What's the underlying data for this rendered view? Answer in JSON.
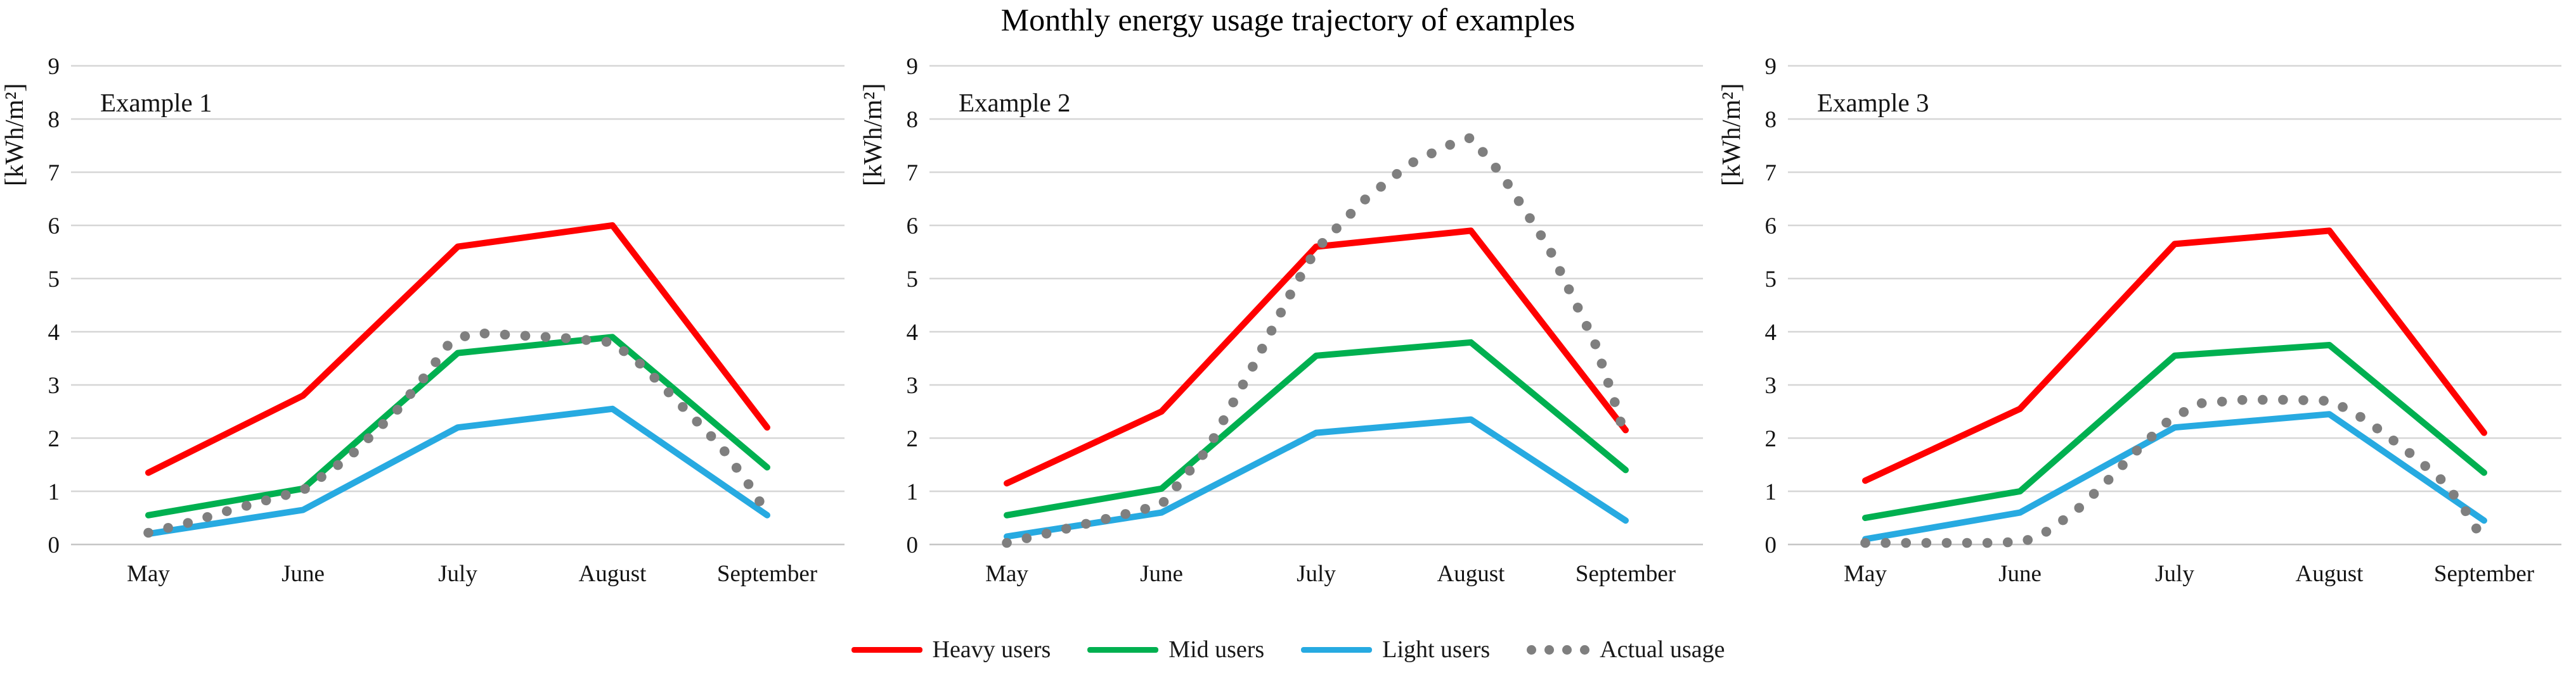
{
  "title": "Monthly energy usage trajectory of examples",
  "ylabel": "[kWh/m²]",
  "theme": {
    "heavy_color": "#FF0000",
    "mid_color": "#00B050",
    "light_color": "#27AAE1",
    "actual_color": "#7F7F7F",
    "gridline_color": "#D6D6D6",
    "zeroline_color": "#C6C6C6",
    "text_color": "#141414"
  },
  "legend": [
    {
      "label": "Heavy users",
      "color": "#FF0000",
      "style": "line"
    },
    {
      "label": "Mid users",
      "color": "#00B050",
      "style": "line"
    },
    {
      "label": "Light users",
      "color": "#27AAE1",
      "style": "line"
    },
    {
      "label": "Actual usage",
      "color": "#7F7F7F",
      "style": "dots"
    }
  ],
  "axis": {
    "ymin": 0,
    "ymax": 9,
    "yticks": [
      0,
      1,
      2,
      3,
      4,
      5,
      6,
      7,
      8,
      9
    ]
  },
  "chart_data": [
    {
      "type": "line",
      "title": "Example 1",
      "categories": [
        "May",
        "June",
        "July",
        "August",
        "September"
      ],
      "ylabel": "[kWh/m²]",
      "ylim": [
        0,
        9
      ],
      "grid": true,
      "legend_position": "bottom",
      "series": [
        {
          "name": "Heavy users",
          "color": "#FF0000",
          "values": [
            1.35,
            2.8,
            5.6,
            6.0,
            2.2
          ]
        },
        {
          "name": "Mid users",
          "color": "#00B050",
          "values": [
            0.55,
            1.05,
            3.6,
            3.9,
            1.45
          ]
        },
        {
          "name": "Light users",
          "color": "#27AAE1",
          "values": [
            0.2,
            0.65,
            2.2,
            2.55,
            0.55
          ]
        }
      ],
      "actual": {
        "name": "Actual usage",
        "color": "#7F7F7F",
        "points": [
          [
            0,
            0.22
          ],
          [
            0.25,
            0.4
          ],
          [
            0.5,
            0.62
          ],
          [
            0.75,
            0.82
          ],
          [
            1,
            1.02
          ],
          [
            1.3,
            1.65
          ],
          [
            1.6,
            2.5
          ],
          [
            1.8,
            3.2
          ],
          [
            1.95,
            3.8
          ],
          [
            2.1,
            3.98
          ],
          [
            2.4,
            3.93
          ],
          [
            2.7,
            3.88
          ],
          [
            3,
            3.8
          ],
          [
            3.2,
            3.35
          ],
          [
            3.45,
            2.6
          ],
          [
            3.7,
            1.85
          ],
          [
            3.9,
            1.05
          ],
          [
            3.97,
            0.72
          ]
        ]
      }
    },
    {
      "type": "line",
      "title": "Example 2",
      "categories": [
        "May",
        "June",
        "July",
        "August",
        "September"
      ],
      "ylabel": "[kWh/m²]",
      "ylim": [
        0,
        9
      ],
      "grid": true,
      "legend_position": "bottom",
      "series": [
        {
          "name": "Heavy users",
          "color": "#FF0000",
          "values": [
            1.15,
            2.5,
            5.6,
            5.9,
            2.15
          ]
        },
        {
          "name": "Mid users",
          "color": "#00B050",
          "values": [
            0.55,
            1.05,
            3.55,
            3.8,
            1.4
          ]
        },
        {
          "name": "Light users",
          "color": "#27AAE1",
          "values": [
            0.15,
            0.6,
            2.1,
            2.35,
            0.45
          ]
        }
      ],
      "actual": {
        "name": "Actual usage",
        "color": "#7F7F7F",
        "points": [
          [
            0,
            0.03
          ],
          [
            0.25,
            0.2
          ],
          [
            0.5,
            0.38
          ],
          [
            0.75,
            0.56
          ],
          [
            1,
            0.75
          ],
          [
            1.3,
            1.8
          ],
          [
            1.6,
            3.4
          ],
          [
            1.85,
            4.8
          ],
          [
            2,
            5.55
          ],
          [
            2.3,
            6.45
          ],
          [
            2.6,
            7.15
          ],
          [
            2.85,
            7.5
          ],
          [
            3,
            7.65
          ],
          [
            3.2,
            6.95
          ],
          [
            3.5,
            5.6
          ],
          [
            3.8,
            3.8
          ],
          [
            3.95,
            2.5
          ],
          [
            4,
            1.95
          ]
        ]
      }
    },
    {
      "type": "line",
      "title": "Example 3",
      "categories": [
        "May",
        "June",
        "July",
        "August",
        "September"
      ],
      "ylabel": "[kWh/m²]",
      "ylim": [
        0,
        9
      ],
      "grid": true,
      "legend_position": "bottom",
      "series": [
        {
          "name": "Heavy users",
          "color": "#FF0000",
          "values": [
            1.2,
            2.55,
            5.65,
            5.9,
            2.1
          ]
        },
        {
          "name": "Mid users",
          "color": "#00B050",
          "values": [
            0.5,
            1.0,
            3.55,
            3.75,
            1.35
          ]
        },
        {
          "name": "Light users",
          "color": "#27AAE1",
          "values": [
            0.1,
            0.6,
            2.2,
            2.45,
            0.45
          ]
        }
      ],
      "actual": {
        "name": "Actual usage",
        "color": "#7F7F7F",
        "points": [
          [
            0,
            0.03
          ],
          [
            0.2,
            0.03
          ],
          [
            0.4,
            0.03
          ],
          [
            0.6,
            0.03
          ],
          [
            0.8,
            0.03
          ],
          [
            1.02,
            0.05
          ],
          [
            1.15,
            0.2
          ],
          [
            1.35,
            0.6
          ],
          [
            1.55,
            1.15
          ],
          [
            1.75,
            1.75
          ],
          [
            1.95,
            2.3
          ],
          [
            2.15,
            2.65
          ],
          [
            2.45,
            2.72
          ],
          [
            2.75,
            2.72
          ],
          [
            3,
            2.7
          ],
          [
            3.15,
            2.5
          ],
          [
            3.35,
            2.1
          ],
          [
            3.55,
            1.65
          ],
          [
            3.75,
            1.15
          ],
          [
            3.9,
            0.55
          ],
          [
            4,
            0.05
          ]
        ]
      }
    }
  ]
}
